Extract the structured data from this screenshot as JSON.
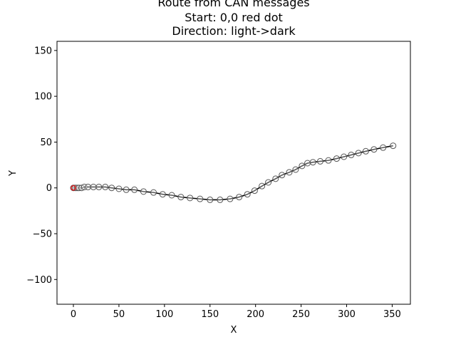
{
  "chart_data": {
    "type": "line",
    "title_lines": [
      "Route from CAN messages",
      "Start: 0,0 red dot",
      "Direction: light->dark"
    ],
    "xlabel": "X",
    "ylabel": "Y",
    "xlim": [
      -18,
      370
    ],
    "ylim": [
      -127,
      160
    ],
    "xticks": [
      0,
      50,
      100,
      150,
      200,
      250,
      300,
      350
    ],
    "yticks": [
      -100,
      -50,
      0,
      50,
      100,
      150
    ],
    "xtick_labels": [
      "0",
      "50",
      "100",
      "150",
      "200",
      "250",
      "300",
      "350"
    ],
    "ytick_labels": [
      "−100",
      "−50",
      "0",
      "50",
      "100",
      "150"
    ],
    "grid": false,
    "start_point": {
      "x": 0,
      "y": 0,
      "color": "#d62728"
    },
    "line_color": "#000000",
    "marker_edge_color": "#555555",
    "series": [
      {
        "x": [
          0,
          2,
          4,
          6,
          9,
          12,
          16,
          22,
          28,
          35,
          42,
          50,
          58,
          67,
          77,
          88,
          98,
          108,
          118,
          128,
          139,
          150,
          161,
          172,
          182,
          191,
          199,
          207,
          214,
          222,
          229,
          237,
          244,
          251,
          257,
          263,
          271,
          280,
          289,
          297,
          305,
          313,
          321,
          330,
          340,
          351
        ],
        "y": [
          0,
          0,
          0,
          0,
          0,
          1,
          1,
          1,
          1,
          1,
          0,
          -1,
          -2,
          -2,
          -4,
          -5,
          -7,
          -8,
          -10,
          -11,
          -12,
          -13,
          -13,
          -12,
          -10,
          -7,
          -3,
          2,
          6,
          10,
          14,
          17,
          20,
          24,
          27,
          28,
          29,
          30,
          32,
          34,
          36,
          38,
          40,
          42,
          44,
          46
        ]
      }
    ]
  }
}
